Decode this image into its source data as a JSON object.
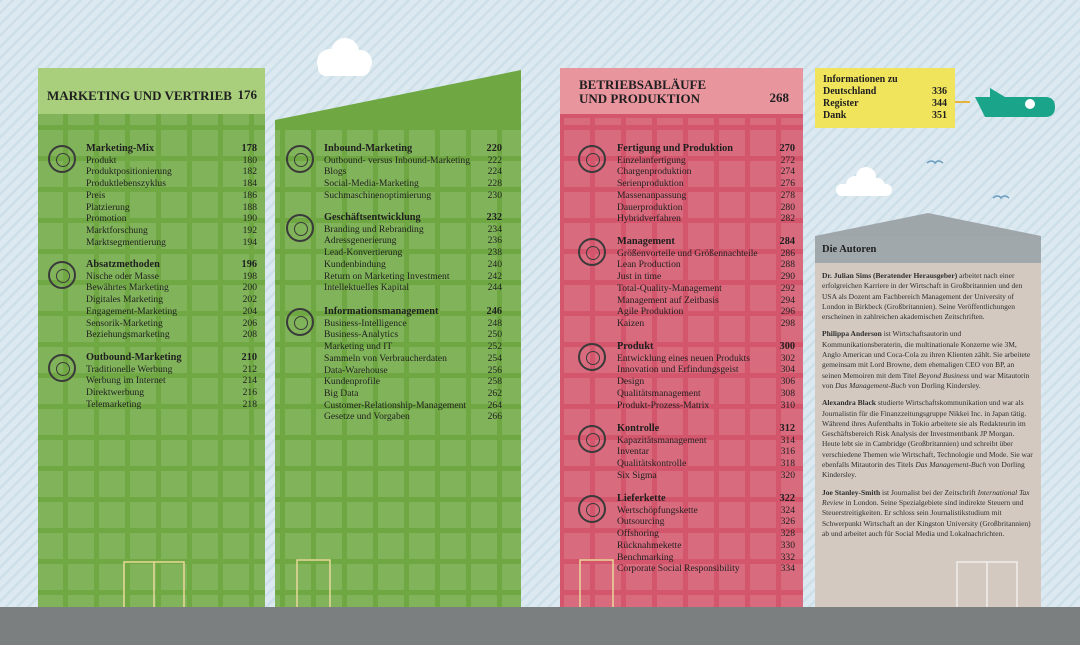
{
  "columns": [
    {
      "title": "MARKETING UND VERTRIEB",
      "page": 176,
      "groups": [
        {
          "title": "Marketing-Mix",
          "page": 178,
          "items": [
            {
              "label": "Produkt",
              "page": 180
            },
            {
              "label": "Produktpositionierung",
              "page": 182
            },
            {
              "label": "Produktlebenszyklus",
              "page": 184
            },
            {
              "label": "Preis",
              "page": 186
            },
            {
              "label": "Platzierung",
              "page": 188
            },
            {
              "label": "Promotion",
              "page": 190
            },
            {
              "label": "Marktforschung",
              "page": 192
            },
            {
              "label": "Marktsegmentierung",
              "page": 194
            }
          ]
        },
        {
          "title": "Absatzmethoden",
          "page": 196,
          "items": [
            {
              "label": "Nische oder Masse",
              "page": 198
            },
            {
              "label": "Bewährtes Marketing",
              "page": 200
            },
            {
              "label": "Digitales Marketing",
              "page": 202
            },
            {
              "label": "Engagement-Marketing",
              "page": 204
            },
            {
              "label": "Sensorik-Marketing",
              "page": 206
            },
            {
              "label": "Beziehungsmarketing",
              "page": 208
            }
          ]
        },
        {
          "title": "Outbound-Marketing",
          "page": 210,
          "items": [
            {
              "label": "Traditionelle Werbung",
              "page": 212
            },
            {
              "label": "Werbung im Internet",
              "page": 214
            },
            {
              "label": "Direktwerbung",
              "page": 216
            },
            {
              "label": "Telemarketing",
              "page": 218
            }
          ]
        }
      ]
    },
    {
      "groups": [
        {
          "title": "Inbound-Marketing",
          "page": 220,
          "items": [
            {
              "label": "Outbound- versus Inbound-Marketing",
              "page": 222
            },
            {
              "label": "Blogs",
              "page": 224
            },
            {
              "label": "Social-Media-Marketing",
              "page": 228
            },
            {
              "label": "Suchmaschinenoptimierung",
              "page": 230
            }
          ]
        },
        {
          "title": "Geschäftsentwicklung",
          "page": 232,
          "items": [
            {
              "label": "Branding und Rebranding",
              "page": 234
            },
            {
              "label": "Adressgenerierung",
              "page": 236
            },
            {
              "label": "Lead-Konvertierung",
              "page": 238
            },
            {
              "label": "Kundenbindung",
              "page": 240
            },
            {
              "label": "Return on Marketing Investment",
              "page": 242
            },
            {
              "label": "Intellektuelles Kapital",
              "page": 244
            }
          ]
        },
        {
          "title": "Informationsmanagement",
          "page": 246,
          "items": [
            {
              "label": "Business-Intelligence",
              "page": 248
            },
            {
              "label": "Business-Analytics",
              "page": 250
            },
            {
              "label": "Marketing und IT",
              "page": 252
            },
            {
              "label": "Sammeln von Verbraucherdaten",
              "page": 254
            },
            {
              "label": "Data-Warehouse",
              "page": 256
            },
            {
              "label": "Kundenprofile",
              "page": 258
            },
            {
              "label": "Big Data",
              "page": 262
            },
            {
              "label": "Customer-Relationship-Management",
              "page": 264
            },
            {
              "label": "Gesetze und Vorgaben",
              "page": 266
            }
          ]
        }
      ]
    },
    {
      "title": "BETRIEBSABLÄUFE UND PRODUKTION",
      "page": 268,
      "groups": [
        {
          "title": "Fertigung und Produktion",
          "page": 270,
          "items": [
            {
              "label": "Einzelanfertigung",
              "page": 272
            },
            {
              "label": "Chargenproduktion",
              "page": 274
            },
            {
              "label": "Serienproduktion",
              "page": 276
            },
            {
              "label": "Massenanpassung",
              "page": 278
            },
            {
              "label": "Dauerproduktion",
              "page": 280
            },
            {
              "label": "Hybridverfahren",
              "page": 282
            }
          ]
        },
        {
          "title": "Management",
          "page": 284,
          "items": [
            {
              "label": "Größenvorteile und Größennachteile",
              "page": 286
            },
            {
              "label": "Lean Production",
              "page": 288
            },
            {
              "label": "Just in time",
              "page": 290
            },
            {
              "label": "Total-Quality-Management",
              "page": 292
            },
            {
              "label": "Management auf Zeitbasis",
              "page": 294
            },
            {
              "label": "Agile Produktion",
              "page": 296
            },
            {
              "label": "Kaizen",
              "page": 298
            }
          ]
        },
        {
          "title": "Produkt",
          "page": 300,
          "items": [
            {
              "label": "Entwicklung eines neuen Produkts",
              "page": 302
            },
            {
              "label": "Innovation und Erfindungsgeist",
              "page": 304
            },
            {
              "label": "Design",
              "page": 306
            },
            {
              "label": "Qualitätsmanagement",
              "page": 308
            },
            {
              "label": "Produkt-Prozess-Matrix",
              "page": 310
            }
          ]
        },
        {
          "title": "Kontrolle",
          "page": 312,
          "items": [
            {
              "label": "Kapazitätsmanagement",
              "page": 314
            },
            {
              "label": "Inventar",
              "page": 316
            },
            {
              "label": "Qualitätskontrolle",
              "page": 318
            },
            {
              "label": "Six Sigma",
              "page": 320
            }
          ]
        },
        {
          "title": "Lieferkette",
          "page": 322,
          "items": [
            {
              "label": "Wertschöpfungskette",
              "page": 324
            },
            {
              "label": "Outsourcing",
              "page": 326
            },
            {
              "label": "Offshoring",
              "page": 328
            },
            {
              "label": "Rücknahmekette",
              "page": 330
            },
            {
              "label": "Benchmarking",
              "page": 332
            },
            {
              "label": "Corporate Social Responsibility",
              "page": 334
            }
          ]
        }
      ]
    }
  ],
  "info": {
    "rows": [
      {
        "label": "Informationen zu Deutschland",
        "page": 336
      },
      {
        "label": "Register",
        "page": 344
      },
      {
        "label": "Dank",
        "page": 351
      }
    ]
  },
  "authors": {
    "title": "Die Autoren",
    "entries": [
      {
        "name": "Dr. Julian Sims (Beratender Herausgeber)",
        "parts": [
          " arbeitet nach einer erfolgreichen Karriere in der Wirtschaft in Großbritannien und den USA als Dozent am Fachbereich Management der University of London in Birkbeck (Großbritannien). Seine Veröffentlichungen erscheinen in zahlreichen akademischen Zeitschriften."
        ]
      },
      {
        "name": "Philippa Anderson",
        "parts": [
          " ist Wirtschaftsautorin und Kommunikationsberaterin, die multinationale Konzerne wie 3M, Anglo American und Coca-Cola zu ihren Klienten zählt. Sie arbeitete gemeinsam mit Lord Browne, dem ehemaligen CEO von BP, an seinen Memoiren mit dem Titel ",
          "Beyond Business",
          " und war Mitautorin von ",
          "Das Management-Buch",
          " von Dorling Kindersley."
        ]
      },
      {
        "name": "Alexandra Black",
        "parts": [
          " studierte Wirtschaftskommunikation und war als Journalistin für die Finanzzeitungsgruppe Nikkei Inc. in Japan tätig. Während ihres Aufenthalts in Tokio arbeitete sie als Redakteurin im Geschäftsbereich Risk Analysis der Investmentbank JP Morgan. Heute lebt sie in Cambridge (Großbritannien) und schreibt über verschiedene Themen wie Wirtschaft, Technologie und Mode. Sie war ebenfalls Mitautorin des Titels ",
          "Das Management-Buch",
          " von Dorling Kindersley."
        ]
      },
      {
        "name": "Joe Stanley-Smith",
        "parts": [
          " ist Journalist bei der Zeitschrift ",
          "International Tax Review",
          " in London. Seine Spezialgebiete sind indirekte Steuern und Steuerstreitigkeiten. Er schloss sein Journalistikstudium mit Schwerpunkt Wirtschaft an der Kingston University (Großbritannien) ab und arbeitet auch für Social Media und Lokalnachrichten."
        ]
      }
    ]
  }
}
